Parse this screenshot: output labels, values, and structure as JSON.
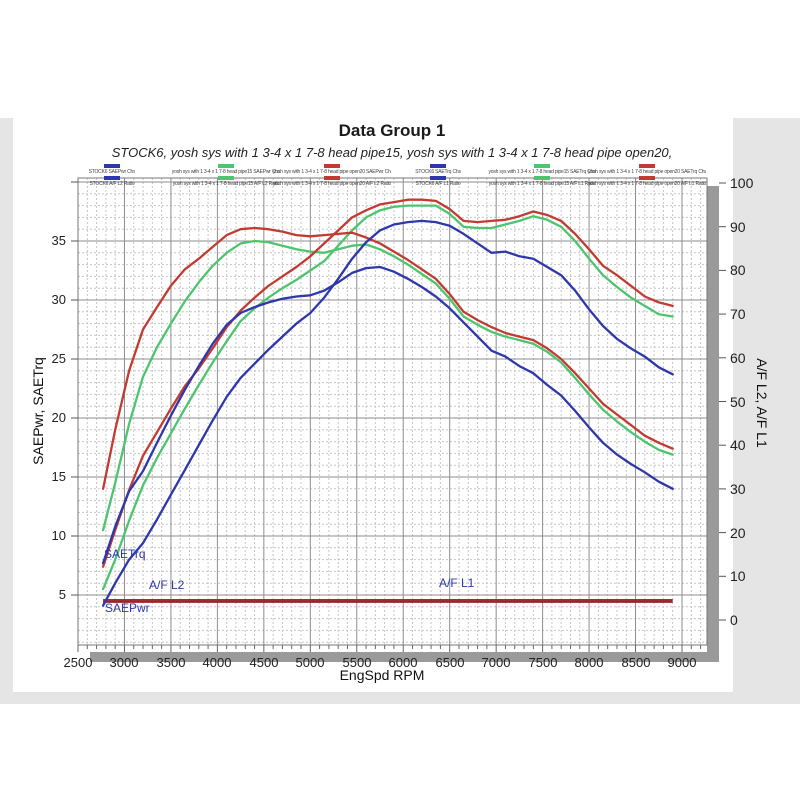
{
  "header": {
    "title": "Data Group 1",
    "subtitle": "STOCK6, yosh sys with 1 3-4 x 1 7-8 head pipe15, yosh sys with 1 3-4 x 1 7-8 head pipe open20,"
  },
  "colors": {
    "stock6": "#2e38aa",
    "pipe15": "#4ec46e",
    "open20": "#c23b32",
    "af_dark": "#a12e2e",
    "af_dark2": "#8f2a2a",
    "grid_minor": "#c6c6c6",
    "grid_major": "#8d8d8d",
    "plot_border": "#777777",
    "shadow": "#9a9a9a",
    "panel_bg": "#ffffff",
    "band_bg": "#e5e5e5",
    "label_blue": "#2e38aa"
  },
  "legend": {
    "items": [
      {
        "marker_color": "#2e38aa",
        "line1": "STOCK6 SAEPwr Chs",
        "line2": "STOCK6 A/F L2 Ratio"
      },
      {
        "marker_color": "#4ec46e",
        "line1": "yosh sys with 1 3-4 x 1 7-8 head pipe15 SAEPwr Chs",
        "line2": "yosh sys with 1 3-4 x 1 7-8 head pipe15 A/F L2 Ratio"
      },
      {
        "marker_color": "#c23b32",
        "line1": "yosh sys with 1 3-4 x 1 7-8 head pipe open20 SAEPwr Chs",
        "line2": "yosh sys with 1 3-4 x 1 7-8 head pipe open20 A/F L2 Ratio"
      },
      {
        "marker_color": "#2e38aa",
        "line1": "STOCK6 SAETrq Chs",
        "line2": "STOCK6 A/F L1 Ratio"
      },
      {
        "marker_color": "#4ec46e",
        "line1": "yosh sys with 1 3-4 x 1 7-8 head pipe15 SAETrq Chs",
        "line2": "yosh sys with 1 3-4 x 1 7-8 head pipe15 A/F L1 Ratio"
      },
      {
        "marker_color": "#c23b32",
        "line1": "yosh sys with 1 3-4 x 1 7-8 head pipe open20 SAETrq Chs",
        "line2": "yosh sys with 1 3-4 x 1 7-8 head pipe open20 A/F L1 Ratio"
      }
    ]
  },
  "axes": {
    "x": {
      "label": "EngSpd  RPM",
      "ticks": [
        2500,
        3000,
        3500,
        4000,
        4500,
        5000,
        5500,
        6000,
        6500,
        7000,
        7500,
        8000,
        8500,
        9000
      ],
      "minor_step": 100
    },
    "y_left": {
      "label": "SAEPwr, SAETrq",
      "ticks": [
        5,
        10,
        15,
        20,
        25,
        30,
        35
      ],
      "minor_step": 1
    },
    "y_right": {
      "label": "A/F L2, A/F L1",
      "ticks": [
        0,
        10,
        20,
        30,
        40,
        50,
        60,
        70,
        80,
        90,
        100
      ]
    }
  },
  "chart_data": {
    "type": "line",
    "title": "Data Group 1",
    "xlabel": "EngSpd RPM",
    "ylabel_left": "SAEPwr, SAETrq",
    "ylabel_right": "A/F L2, A/F L1",
    "x_range_rpm": [
      2500,
      9000
    ],
    "y_left_range": [
      0,
      40
    ],
    "y_right_range": [
      0,
      100
    ],
    "grid": true,
    "x_rpm": [
      2770,
      2900,
      3050,
      3200,
      3350,
      3500,
      3650,
      3800,
      3950,
      4100,
      4250,
      4400,
      4550,
      4700,
      4850,
      5000,
      5150,
      5300,
      5450,
      5600,
      5750,
      5900,
      6050,
      6200,
      6350,
      6500,
      6650,
      6800,
      6950,
      7100,
      7250,
      7400,
      7550,
      7700,
      7850,
      8000,
      8150,
      8300,
      8450,
      8600,
      8750,
      8900
    ],
    "series": [
      {
        "id": "pipe15_trq",
        "name": "yosh sys with 1 3-4 x 1 7-8 head pipe15 SAETrq",
        "color_key": "pipe15",
        "values": [
          10.5,
          14.5,
          19.5,
          23.5,
          26.0,
          28.0,
          29.9,
          31.5,
          32.9,
          34.0,
          34.8,
          35.0,
          34.9,
          34.6,
          34.3,
          34.1,
          34.0,
          34.3,
          34.6,
          34.7,
          34.3,
          33.7,
          33.0,
          32.2,
          31.4,
          30.1,
          28.6,
          27.9,
          27.3,
          26.9,
          26.6,
          26.3,
          25.6,
          24.7,
          23.4,
          22.0,
          20.7,
          19.7,
          18.8,
          18.0,
          17.3,
          16.9
        ]
      },
      {
        "id": "pipe15_pwr",
        "name": "yosh sys with 1 3-4 x 1 7-8 head pipe15 SAEPwr",
        "color_key": "pipe15",
        "values": [
          5.5,
          8.0,
          11.3,
          14.3,
          16.6,
          18.7,
          20.8,
          22.8,
          24.7,
          26.5,
          28.2,
          29.3,
          30.2,
          31.0,
          31.7,
          32.5,
          33.3,
          34.6,
          35.9,
          37.0,
          37.6,
          37.9,
          38.0,
          38.0,
          38.0,
          37.3,
          36.2,
          36.1,
          36.1,
          36.4,
          36.7,
          37.1,
          36.8,
          36.2,
          35.0,
          33.5,
          32.1,
          31.1,
          30.2,
          29.5,
          28.8,
          28.6
        ]
      },
      {
        "id": "open20_trq",
        "name": "yosh sys with 1 3-4 x 1 7-8 head pipe open20 SAETrq",
        "color_key": "open20",
        "values": [
          14.0,
          19.0,
          24.0,
          27.5,
          29.4,
          31.2,
          32.6,
          33.5,
          34.5,
          35.5,
          36.0,
          36.1,
          36.0,
          35.8,
          35.5,
          35.4,
          35.5,
          35.6,
          35.7,
          35.3,
          34.8,
          34.1,
          33.4,
          32.6,
          31.8,
          30.5,
          29.0,
          28.3,
          27.7,
          27.2,
          26.9,
          26.6,
          25.9,
          25.0,
          23.8,
          22.5,
          21.2,
          20.3,
          19.4,
          18.5,
          17.9,
          17.4
        ]
      },
      {
        "id": "open20_pwr",
        "name": "yosh sys with 1 3-4 x 1 7-8 head pipe open20 SAEPwr",
        "color_key": "open20",
        "values": [
          7.4,
          10.5,
          13.9,
          16.8,
          18.8,
          20.8,
          22.7,
          24.2,
          25.9,
          27.7,
          29.1,
          30.2,
          31.2,
          32.0,
          32.8,
          33.7,
          34.8,
          35.9,
          37.0,
          37.6,
          38.1,
          38.3,
          38.5,
          38.5,
          38.4,
          37.7,
          36.7,
          36.6,
          36.7,
          36.8,
          37.1,
          37.5,
          37.2,
          36.7,
          35.6,
          34.3,
          32.9,
          32.1,
          31.2,
          30.3,
          29.8,
          29.5
        ]
      },
      {
        "id": "stock6_trq",
        "name": "STOCK6 SAETrq",
        "color_key": "stock6",
        "values": [
          7.7,
          10.8,
          13.8,
          15.5,
          17.9,
          20.2,
          22.4,
          24.4,
          26.3,
          27.9,
          28.9,
          29.4,
          29.8,
          30.1,
          30.3,
          30.4,
          30.8,
          31.5,
          32.3,
          32.7,
          32.8,
          32.4,
          31.8,
          31.1,
          30.3,
          29.3,
          28.1,
          26.9,
          25.7,
          25.2,
          24.4,
          23.8,
          22.8,
          21.9,
          20.6,
          19.2,
          17.9,
          16.9,
          16.1,
          15.4,
          14.6,
          14.0
        ]
      },
      {
        "id": "stock6_pwr",
        "name": "STOCK6 SAEPwr",
        "color_key": "stock6",
        "values": [
          4.1,
          6.0,
          8.0,
          9.4,
          11.4,
          13.5,
          15.6,
          17.7,
          19.8,
          21.8,
          23.4,
          24.6,
          25.8,
          26.9,
          28.0,
          28.9,
          30.2,
          31.8,
          33.5,
          34.9,
          35.9,
          36.4,
          36.6,
          36.7,
          36.6,
          36.3,
          35.6,
          34.8,
          34.0,
          34.1,
          33.7,
          33.5,
          32.8,
          32.1,
          30.8,
          29.2,
          27.8,
          26.7,
          25.9,
          25.2,
          24.3,
          23.7
        ]
      }
    ],
    "flat_lines": [
      {
        "id": "af_l2",
        "name": "A/F L2",
        "color_key": "af_dark",
        "value": 4.58
      },
      {
        "id": "af_l1",
        "name": "A/F L1",
        "color_key": "af_dark2",
        "value": 4.42
      }
    ],
    "annotations": [
      {
        "id": "saetrq",
        "text": "SAETrq",
        "rpm": 2780,
        "v": 8.6
      },
      {
        "id": "af_l2",
        "text": "A/F L2",
        "rpm": 3260,
        "v": 5.9
      },
      {
        "id": "saepwr",
        "text": "SAEPwr",
        "rpm": 2790,
        "v": 4.0
      },
      {
        "id": "af_l1",
        "text": "A/F L1",
        "rpm": 6380,
        "v": 6.1
      }
    ]
  }
}
